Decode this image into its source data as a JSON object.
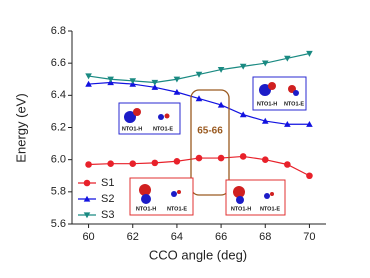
{
  "chart_data": {
    "type": "line",
    "x_label": "CCO angle (deg)",
    "y_label": "Energy (eV)",
    "x": [
      60,
      61,
      62,
      63,
      64,
      65,
      66,
      67,
      68,
      69,
      70
    ],
    "series": [
      {
        "name": "S1",
        "color": "#e8212a",
        "marker": "circle",
        "values": [
          5.97,
          5.975,
          5.975,
          5.98,
          5.99,
          6.01,
          6.01,
          6.02,
          6.0,
          5.97,
          5.9
        ]
      },
      {
        "name": "S2",
        "color": "#1212e0",
        "marker": "triangle-up",
        "values": [
          6.47,
          6.48,
          6.47,
          6.45,
          6.42,
          6.38,
          6.34,
          6.28,
          6.24,
          6.22,
          6.22
        ]
      },
      {
        "name": "S3",
        "color": "#1a8a82",
        "marker": "triangle-down",
        "values": [
          6.52,
          6.5,
          6.49,
          6.48,
          6.5,
          6.53,
          6.56,
          6.58,
          6.6,
          6.63,
          6.66
        ]
      }
    ],
    "xlim": [
      59.25,
      70.75
    ],
    "xticks": [
      60,
      62,
      64,
      66,
      68,
      70
    ],
    "ylim": [
      5.6,
      6.8
    ],
    "yticks": [
      5.6,
      5.8,
      {
        "value": 6,
        "label": "6.0"
      },
      6.2,
      6.4,
      6.6,
      6.8
    ],
    "legend": "lower left",
    "annotation": "65-66",
    "insets": [
      {
        "labels": [
          "NTO1-H",
          "NTO1-E"
        ]
      },
      {
        "labels": [
          "NTO1-H",
          "NTO1-E"
        ]
      },
      {
        "labels": [
          "NTO1-H",
          "NTO1-E"
        ]
      },
      {
        "labels": [
          "NTO1-H",
          "NTO1-E"
        ]
      }
    ]
  }
}
